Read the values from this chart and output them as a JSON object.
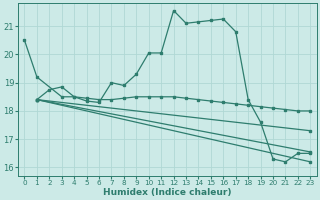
{
  "background_color": "#cceae7",
  "grid_color": "#b0d8d4",
  "line_color": "#2e7d6e",
  "xlabel": "Humidex (Indice chaleur)",
  "xlim": [
    -0.5,
    23.5
  ],
  "ylim": [
    15.7,
    21.8
  ],
  "yticks": [
    16,
    17,
    18,
    19,
    20,
    21
  ],
  "xticks": [
    0,
    1,
    2,
    3,
    4,
    5,
    6,
    7,
    8,
    9,
    10,
    11,
    12,
    13,
    14,
    15,
    16,
    17,
    18,
    19,
    20,
    21,
    22,
    23
  ],
  "curve1_x": [
    0,
    1,
    3,
    4,
    5,
    6,
    7,
    8,
    9,
    10,
    11,
    12,
    13,
    14,
    15,
    16,
    17,
    18,
    19,
    20,
    21,
    22,
    23
  ],
  "curve1_y": [
    20.5,
    19.2,
    18.5,
    18.5,
    18.35,
    18.3,
    19.0,
    18.9,
    19.3,
    20.05,
    20.05,
    21.55,
    21.1,
    21.15,
    21.2,
    21.25,
    20.8,
    18.4,
    17.6,
    16.3,
    16.2,
    16.5,
    16.5
  ],
  "line2_x": [
    1,
    23
  ],
  "line2_y": [
    18.4,
    17.3
  ],
  "line3_x": [
    1,
    23
  ],
  "line3_y": [
    18.4,
    16.55
  ],
  "line4_x": [
    1,
    23
  ],
  "line4_y": [
    18.4,
    16.2
  ],
  "curve5_x": [
    1,
    2,
    3,
    4,
    5,
    6,
    7,
    8,
    9,
    10,
    11,
    12,
    13,
    14,
    15,
    16,
    17,
    18,
    19,
    20,
    21,
    22,
    23
  ],
  "curve5_y": [
    18.4,
    18.75,
    18.85,
    18.5,
    18.45,
    18.4,
    18.4,
    18.45,
    18.5,
    18.5,
    18.5,
    18.5,
    18.45,
    18.4,
    18.35,
    18.3,
    18.25,
    18.2,
    18.15,
    18.1,
    18.05,
    18.0,
    18.0
  ]
}
